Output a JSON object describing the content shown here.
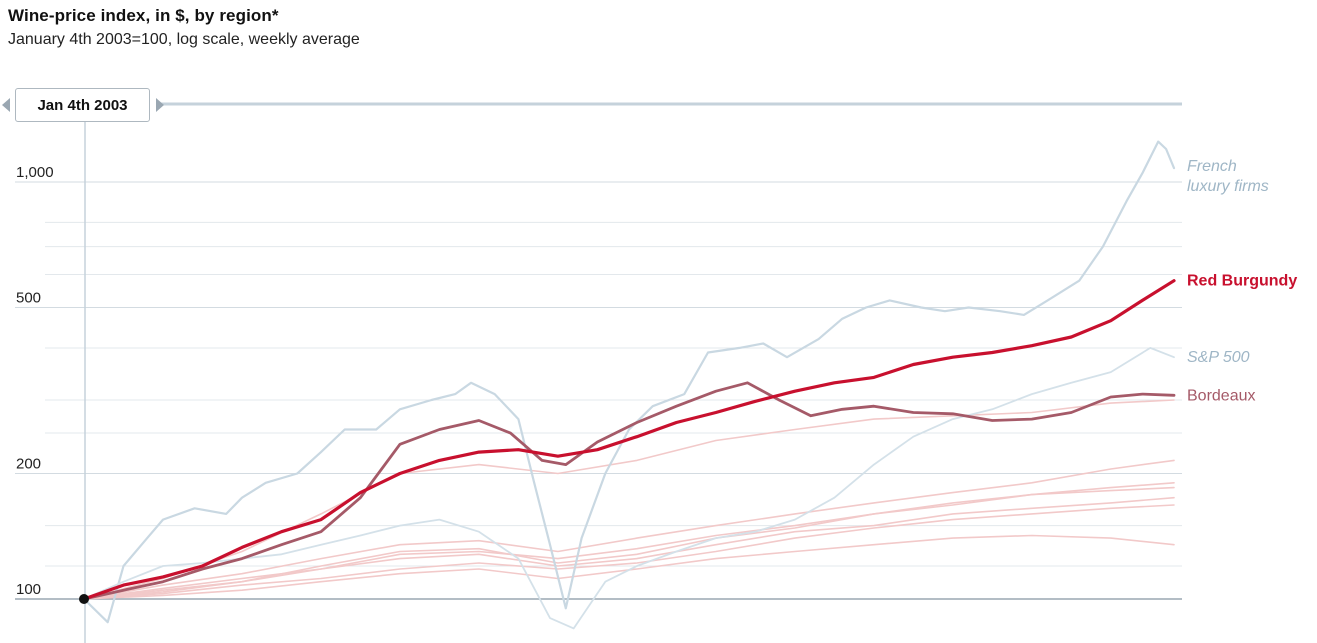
{
  "chart_data": {
    "type": "line",
    "title": "Wine-price index, in $, by region*",
    "subtitle": "January 4th 2003=100, log scale, weekly average",
    "log_scale": true,
    "ylim": [
      85,
      1400
    ],
    "xlim": [
      2003.0,
      2016.8
    ],
    "y_ticks": [
      {
        "value": 100,
        "label": "100"
      },
      {
        "value": 200,
        "label": "200"
      },
      {
        "value": 500,
        "label": "500"
      },
      {
        "value": 1000,
        "label": "1,000"
      }
    ],
    "minor_gridlines": [
      120,
      150,
      250,
      300,
      400,
      600,
      700,
      800
    ],
    "date_control": {
      "label": "Jan 4th 2003"
    },
    "series": [
      {
        "name": "French luxury firms",
        "color": "#c9d8e2",
        "width": 2.2,
        "labelled": true,
        "label_color": "#9fb6c6",
        "italic": true,
        "points": [
          [
            2003.0,
            100
          ],
          [
            2003.3,
            88
          ],
          [
            2003.5,
            120
          ],
          [
            2003.8,
            140
          ],
          [
            2004.0,
            155
          ],
          [
            2004.4,
            165
          ],
          [
            2004.8,
            160
          ],
          [
            2005.0,
            175
          ],
          [
            2005.3,
            190
          ],
          [
            2005.7,
            200
          ],
          [
            2006.0,
            225
          ],
          [
            2006.3,
            255
          ],
          [
            2006.7,
            255
          ],
          [
            2007.0,
            285
          ],
          [
            2007.4,
            300
          ],
          [
            2007.7,
            310
          ],
          [
            2007.9,
            330
          ],
          [
            2008.2,
            310
          ],
          [
            2008.5,
            270
          ],
          [
            2008.7,
            190
          ],
          [
            2008.9,
            135
          ],
          [
            2009.1,
            95
          ],
          [
            2009.3,
            140
          ],
          [
            2009.6,
            200
          ],
          [
            2009.9,
            255
          ],
          [
            2010.2,
            290
          ],
          [
            2010.6,
            310
          ],
          [
            2010.9,
            390
          ],
          [
            2011.3,
            400
          ],
          [
            2011.6,
            410
          ],
          [
            2011.9,
            380
          ],
          [
            2012.3,
            420
          ],
          [
            2012.6,
            470
          ],
          [
            2012.9,
            500
          ],
          [
            2013.2,
            520
          ],
          [
            2013.6,
            500
          ],
          [
            2013.9,
            490
          ],
          [
            2014.2,
            500
          ],
          [
            2014.6,
            490
          ],
          [
            2014.9,
            480
          ],
          [
            2015.2,
            520
          ],
          [
            2015.6,
            580
          ],
          [
            2015.9,
            700
          ],
          [
            2016.2,
            900
          ],
          [
            2016.4,
            1050
          ],
          [
            2016.6,
            1250
          ],
          [
            2016.7,
            1200
          ],
          [
            2016.8,
            1080
          ]
        ]
      },
      {
        "name": "Red Burgundy",
        "color": "#c8102e",
        "width": 3.2,
        "labelled": true,
        "label_color": "#c8102e",
        "label_bold": true,
        "points": [
          [
            2003.0,
            100
          ],
          [
            2003.5,
            108
          ],
          [
            2004.0,
            113
          ],
          [
            2004.5,
            120
          ],
          [
            2005.0,
            133
          ],
          [
            2005.5,
            145
          ],
          [
            2006.0,
            155
          ],
          [
            2006.5,
            180
          ],
          [
            2007.0,
            200
          ],
          [
            2007.5,
            215
          ],
          [
            2008.0,
            225
          ],
          [
            2008.5,
            228
          ],
          [
            2009.0,
            220
          ],
          [
            2009.5,
            228
          ],
          [
            2010.0,
            245
          ],
          [
            2010.5,
            265
          ],
          [
            2011.0,
            280
          ],
          [
            2011.5,
            298
          ],
          [
            2012.0,
            315
          ],
          [
            2012.5,
            330
          ],
          [
            2013.0,
            340
          ],
          [
            2013.5,
            365
          ],
          [
            2014.0,
            380
          ],
          [
            2014.5,
            390
          ],
          [
            2015.0,
            405
          ],
          [
            2015.5,
            425
          ],
          [
            2016.0,
            465
          ],
          [
            2016.4,
            520
          ],
          [
            2016.8,
            580
          ]
        ]
      },
      {
        "name": "S&P 500",
        "color": "#d4e1e9",
        "width": 1.8,
        "labelled": true,
        "label_color": "#9fb6c6",
        "italic": true,
        "points": [
          [
            2003.0,
            100
          ],
          [
            2003.5,
            110
          ],
          [
            2004.0,
            120
          ],
          [
            2004.5,
            122
          ],
          [
            2005.0,
            125
          ],
          [
            2005.5,
            128
          ],
          [
            2006.0,
            135
          ],
          [
            2006.5,
            142
          ],
          [
            2007.0,
            150
          ],
          [
            2007.5,
            155
          ],
          [
            2008.0,
            145
          ],
          [
            2008.5,
            125
          ],
          [
            2008.9,
            90
          ],
          [
            2009.2,
            85
          ],
          [
            2009.6,
            110
          ],
          [
            2010.0,
            120
          ],
          [
            2010.5,
            130
          ],
          [
            2011.0,
            140
          ],
          [
            2011.5,
            145
          ],
          [
            2012.0,
            155
          ],
          [
            2012.5,
            175
          ],
          [
            2013.0,
            210
          ],
          [
            2013.5,
            245
          ],
          [
            2014.0,
            270
          ],
          [
            2014.5,
            285
          ],
          [
            2015.0,
            310
          ],
          [
            2015.5,
            330
          ],
          [
            2016.0,
            350
          ],
          [
            2016.5,
            400
          ],
          [
            2016.8,
            380
          ]
        ]
      },
      {
        "name": "Bordeaux",
        "color": "#a55a68",
        "width": 2.8,
        "labelled": true,
        "label_color": "#a55a68",
        "label_bold": false,
        "points": [
          [
            2003.0,
            100
          ],
          [
            2003.5,
            105
          ],
          [
            2004.0,
            110
          ],
          [
            2004.5,
            118
          ],
          [
            2005.0,
            125
          ],
          [
            2005.5,
            135
          ],
          [
            2006.0,
            145
          ],
          [
            2006.5,
            175
          ],
          [
            2007.0,
            235
          ],
          [
            2007.5,
            255
          ],
          [
            2008.0,
            268
          ],
          [
            2008.4,
            250
          ],
          [
            2008.8,
            215
          ],
          [
            2009.1,
            210
          ],
          [
            2009.5,
            238
          ],
          [
            2010.0,
            265
          ],
          [
            2010.5,
            290
          ],
          [
            2011.0,
            315
          ],
          [
            2011.4,
            330
          ],
          [
            2011.8,
            300
          ],
          [
            2012.2,
            275
          ],
          [
            2012.6,
            285
          ],
          [
            2013.0,
            290
          ],
          [
            2013.5,
            280
          ],
          [
            2014.0,
            278
          ],
          [
            2014.5,
            268
          ],
          [
            2015.0,
            270
          ],
          [
            2015.5,
            280
          ],
          [
            2016.0,
            305
          ],
          [
            2016.4,
            310
          ],
          [
            2016.8,
            308
          ]
        ]
      },
      {
        "name": "",
        "color": "#f2c9c9",
        "width": 1.6,
        "labelled": false,
        "points": [
          [
            2003.0,
            100
          ],
          [
            2004.0,
            112
          ],
          [
            2005.0,
            130
          ],
          [
            2006.0,
            160
          ],
          [
            2007.0,
            200
          ],
          [
            2008.0,
            210
          ],
          [
            2009.0,
            200
          ],
          [
            2010.0,
            215
          ],
          [
            2011.0,
            240
          ],
          [
            2012.0,
            255
          ],
          [
            2013.0,
            270
          ],
          [
            2014.0,
            275
          ],
          [
            2015.0,
            280
          ],
          [
            2016.0,
            295
          ],
          [
            2016.8,
            300
          ]
        ]
      },
      {
        "name": "",
        "color": "#f2c9c9",
        "width": 1.6,
        "labelled": false,
        "points": [
          [
            2003.0,
            100
          ],
          [
            2004.0,
            108
          ],
          [
            2005.0,
            115
          ],
          [
            2006.0,
            125
          ],
          [
            2007.0,
            135
          ],
          [
            2008.0,
            138
          ],
          [
            2009.0,
            130
          ],
          [
            2010.0,
            140
          ],
          [
            2011.0,
            150
          ],
          [
            2012.0,
            160
          ],
          [
            2013.0,
            170
          ],
          [
            2014.0,
            180
          ],
          [
            2015.0,
            190
          ],
          [
            2016.0,
            205
          ],
          [
            2016.8,
            215
          ]
        ]
      },
      {
        "name": "",
        "color": "#f2c9c9",
        "width": 1.6,
        "labelled": false,
        "points": [
          [
            2003.0,
            100
          ],
          [
            2004.0,
            106
          ],
          [
            2005.0,
            112
          ],
          [
            2006.0,
            118
          ],
          [
            2007.0,
            128
          ],
          [
            2008.0,
            130
          ],
          [
            2009.0,
            125
          ],
          [
            2010.0,
            132
          ],
          [
            2011.0,
            142
          ],
          [
            2012.0,
            150
          ],
          [
            2013.0,
            160
          ],
          [
            2014.0,
            168
          ],
          [
            2015.0,
            178
          ],
          [
            2016.0,
            185
          ],
          [
            2016.8,
            190
          ]
        ]
      },
      {
        "name": "",
        "color": "#f2c9c9",
        "width": 1.6,
        "labelled": false,
        "points": [
          [
            2003.0,
            100
          ],
          [
            2004.0,
            104
          ],
          [
            2005.0,
            110
          ],
          [
            2006.0,
            120
          ],
          [
            2007.0,
            130
          ],
          [
            2008.0,
            132
          ],
          [
            2009.0,
            122
          ],
          [
            2010.0,
            128
          ],
          [
            2011.0,
            140
          ],
          [
            2012.0,
            148
          ],
          [
            2013.0,
            160
          ],
          [
            2014.0,
            170
          ],
          [
            2015.0,
            178
          ],
          [
            2016.0,
            182
          ],
          [
            2016.8,
            185
          ]
        ]
      },
      {
        "name": "",
        "color": "#f2c9c9",
        "width": 1.6,
        "labelled": false,
        "points": [
          [
            2003.0,
            100
          ],
          [
            2004.0,
            105
          ],
          [
            2005.0,
            110
          ],
          [
            2006.0,
            118
          ],
          [
            2007.0,
            125
          ],
          [
            2008.0,
            128
          ],
          [
            2009.0,
            120
          ],
          [
            2010.0,
            125
          ],
          [
            2011.0,
            135
          ],
          [
            2012.0,
            145
          ],
          [
            2013.0,
            150
          ],
          [
            2014.0,
            160
          ],
          [
            2015.0,
            165
          ],
          [
            2016.0,
            170
          ],
          [
            2016.8,
            175
          ]
        ]
      },
      {
        "name": "",
        "color": "#f2c9c9",
        "width": 1.6,
        "labelled": false,
        "points": [
          [
            2003.0,
            100
          ],
          [
            2004.0,
            103
          ],
          [
            2005.0,
            108
          ],
          [
            2006.0,
            112
          ],
          [
            2007.0,
            118
          ],
          [
            2008.0,
            122
          ],
          [
            2009.0,
            118
          ],
          [
            2010.0,
            122
          ],
          [
            2011.0,
            130
          ],
          [
            2012.0,
            140
          ],
          [
            2013.0,
            148
          ],
          [
            2014.0,
            155
          ],
          [
            2015.0,
            160
          ],
          [
            2016.0,
            165
          ],
          [
            2016.8,
            168
          ]
        ]
      },
      {
        "name": "",
        "color": "#f2c9c9",
        "width": 1.6,
        "labelled": false,
        "points": [
          [
            2003.0,
            100
          ],
          [
            2004.0,
            102
          ],
          [
            2005.0,
            105
          ],
          [
            2006.0,
            110
          ],
          [
            2007.0,
            115
          ],
          [
            2008.0,
            118
          ],
          [
            2009.0,
            112
          ],
          [
            2010.0,
            118
          ],
          [
            2011.0,
            125
          ],
          [
            2012.0,
            130
          ],
          [
            2013.0,
            135
          ],
          [
            2014.0,
            140
          ],
          [
            2015.0,
            142
          ],
          [
            2016.0,
            140
          ],
          [
            2016.8,
            135
          ]
        ]
      }
    ]
  }
}
